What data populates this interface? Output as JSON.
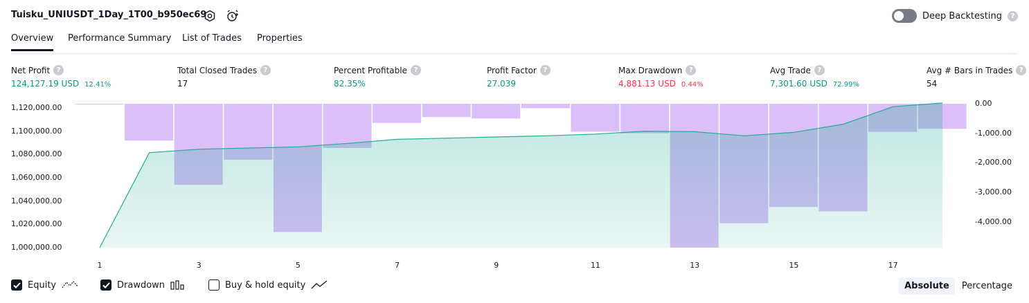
{
  "header": {
    "title": "Tuisku_UNIUSDT_1Day_1T00_b950ec69",
    "deep_backtesting_label": "Deep Backtesting",
    "deep_backtesting_on": false,
    "help_glyph": "?"
  },
  "tabs": [
    {
      "label": "Overview",
      "active": true
    },
    {
      "label": "Performance Summary",
      "active": false
    },
    {
      "label": "List of Trades",
      "active": false
    },
    {
      "label": "Properties",
      "active": false
    }
  ],
  "metrics": {
    "net_profit": {
      "label": "Net Profit",
      "value": "124,127.19 USD",
      "pct": "12.41%"
    },
    "total_closed_trades": {
      "label": "Total Closed Trades",
      "value": "17"
    },
    "percent_profitable": {
      "label": "Percent Profitable",
      "value": "82.35%"
    },
    "profit_factor": {
      "label": "Profit Factor",
      "value": "27.039"
    },
    "max_drawdown": {
      "label": "Max Drawdown",
      "value": "4,881.13 USD",
      "pct": "0.44%"
    },
    "avg_trade": {
      "label": "Avg Trade",
      "value": "7,301.60 USD",
      "pct": "72.99%"
    },
    "avg_bars": {
      "label": "Avg # Bars in Trades",
      "value": "54"
    }
  },
  "chart_data": {
    "type": "area",
    "x": [
      1,
      2,
      3,
      4,
      5,
      6,
      7,
      8,
      9,
      10,
      11,
      12,
      13,
      14,
      15,
      16,
      17,
      18
    ],
    "x_tick_labels": [
      "1",
      "3",
      "5",
      "7",
      "9",
      "11",
      "13",
      "15",
      "17"
    ],
    "equity_axis": {
      "ylim": [
        1000000,
        1123500
      ],
      "tick_labels": [
        "1,120,000.00",
        "1,100,000.00",
        "1,080,000.00",
        "1,060,000.00",
        "1,040,000.00",
        "1,020,000.00",
        "1,000,000.00"
      ]
    },
    "drawdown_axis": {
      "ylim": [
        -4881.13,
        0
      ],
      "tick_labels": [
        "0.00",
        "-1,000.00",
        "-2,000.00",
        "-3,000.00",
        "-4,000.00"
      ]
    },
    "series": [
      {
        "name": "Equity",
        "kind": "line-area",
        "color": "#22ab94",
        "values": [
          1000000,
          1081500,
          1084500,
          1085500,
          1086500,
          1089500,
          1093000,
          1094000,
          1095000,
          1096000,
          1097500,
          1100000,
          1099500,
          1096000,
          1099000,
          1106000,
          1121000,
          1124127
        ]
      },
      {
        "name": "Drawdown",
        "kind": "bar",
        "color": "#cfa9f6",
        "values": [
          -20,
          -1250,
          -2750,
          -1900,
          -4350,
          -1500,
          -650,
          -450,
          -500,
          -150,
          -950,
          -1000,
          -4881,
          -4050,
          -3500,
          -3650,
          -950,
          -850
        ]
      }
    ],
    "grid": false
  },
  "legend": [
    {
      "label": "Equity",
      "checked": true,
      "icon": "equity-line-icon"
    },
    {
      "label": "Drawdown",
      "checked": true,
      "icon": "drawdown-bars-icon"
    },
    {
      "label": "Buy & hold equity",
      "checked": false,
      "icon": "buy-hold-line-icon"
    }
  ],
  "scale_toggle": {
    "absolute": "Absolute",
    "percentage": "Percentage",
    "selected": "absolute"
  },
  "colors": {
    "green": "#089981",
    "red": "#f23645",
    "equity_line": "#22ab94",
    "drawdown_bar": "#cfa9f6"
  }
}
